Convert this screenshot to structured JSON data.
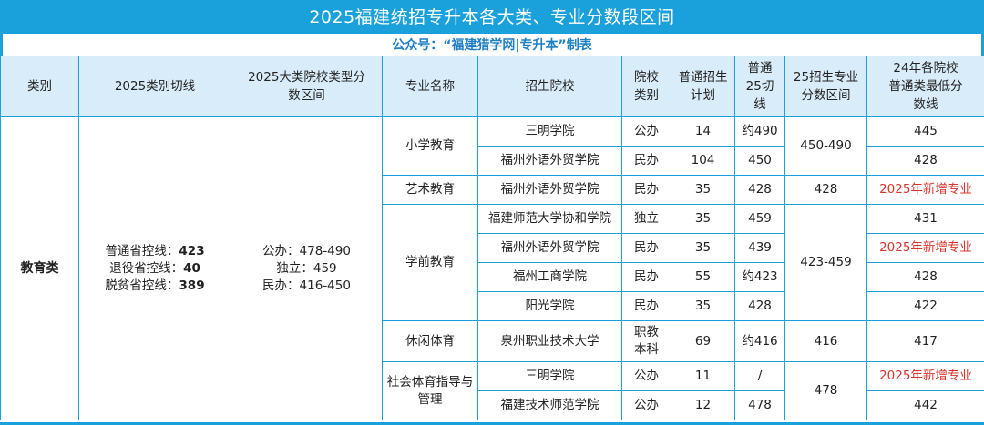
{
  "title": "2025福建统招专升本各大类、专业分数段区间",
  "subtitle": "公众号：“福建猎学网|专升本”制表",
  "headers": {
    "category": "类别",
    "cutoff_2025": "2025类别切线",
    "range_by_type": "2025大类院校类型分数区间",
    "major": "专业名称",
    "school": "招生院校",
    "school_type": "院校类别",
    "plan": "普通招生计划",
    "cut25": "普通25切线",
    "range25": "25招生专业分数区间",
    "min24": "24年各院校普通类最低分数线"
  },
  "category": {
    "name": "教育类",
    "cutoffs": [
      {
        "label": "普通省控线：",
        "value": "423"
      },
      {
        "label": "退役省控线：",
        "value": "40"
      },
      {
        "label": "脱贫省控线：",
        "value": "389"
      }
    ],
    "type_ranges": [
      "公办：478-490",
      "独立：459",
      "民办：416-450"
    ]
  },
  "groups": [
    {
      "major": "小学教育",
      "range25": "450-490",
      "rows": [
        {
          "school": "三明学院",
          "type": "公办",
          "plan": "14",
          "cut25": "约490",
          "min24": "445",
          "new": false
        },
        {
          "school": "福州外语外贸学院",
          "type": "民办",
          "plan": "104",
          "cut25": "450",
          "min24": "428",
          "new": false
        }
      ]
    },
    {
      "major": "艺术教育",
      "range25": "428",
      "rows": [
        {
          "school": "福州外语外贸学院",
          "type": "民办",
          "plan": "35",
          "cut25": "428",
          "min24": "2025年新增专业",
          "new": true
        }
      ]
    },
    {
      "major": "学前教育",
      "range25": "423-459",
      "rows": [
        {
          "school": "福建师范大学协和学院",
          "type": "独立",
          "plan": "35",
          "cut25": "459",
          "min24": "431",
          "new": false
        },
        {
          "school": "福州外语外贸学院",
          "type": "民办",
          "plan": "35",
          "cut25": "439",
          "min24": "2025年新增专业",
          "new": true
        },
        {
          "school": "福州工商学院",
          "type": "民办",
          "plan": "55",
          "cut25": "约423",
          "min24": "428",
          "new": false
        },
        {
          "school": "阳光学院",
          "type": "民办",
          "plan": "35",
          "cut25": "428",
          "min24": "422",
          "new": false
        }
      ]
    },
    {
      "major": "休闲体育",
      "range25": "416",
      "rows": [
        {
          "school": "泉州职业技术大学",
          "type": "职教本科",
          "plan": "69",
          "cut25": "约416",
          "min24": "417",
          "new": false
        }
      ]
    },
    {
      "major": "社会体育指导与管理",
      "range25": "478",
      "rows": [
        {
          "school": "三明学院",
          "type": "公办",
          "plan": "11",
          "cut25": "/",
          "min24": "2025年新增专业",
          "new": true
        },
        {
          "school": "福建技术师范学院",
          "type": "公办",
          "plan": "12",
          "cut25": "478",
          "min24": "442",
          "new": false
        }
      ]
    }
  ]
}
